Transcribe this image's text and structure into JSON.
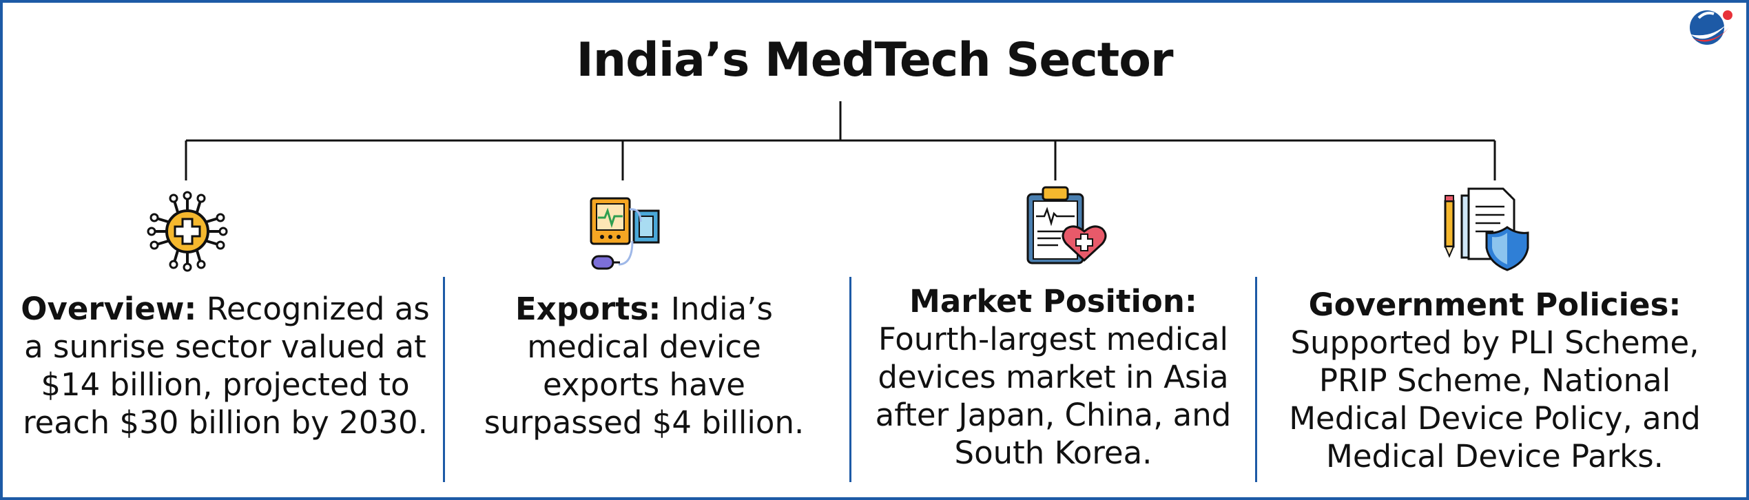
{
  "title": "India’s MedTech Sector",
  "colors": {
    "border": "#1d5aa6",
    "text": "#111111",
    "logo_blue": "#1d5aa6",
    "logo_red": "#e8323a"
  },
  "columns": [
    {
      "heading": "Overview:",
      "body": " Recognized as a sunrise sector valued at $14 billion, projected to reach $30 billion by 2030.",
      "icon": "circuit-medical-cross-icon"
    },
    {
      "heading": "Exports:",
      "body": " India’s medical device exports have surpassed $4 billion.",
      "icon": "medical-device-monitor-icon"
    },
    {
      "heading": "Market Position:",
      "body": "Fourth-largest medical devices market in Asia after Japan, China, and South Korea.",
      "icon": "clipboard-heart-icon"
    },
    {
      "heading": "Government Policies:",
      "body": "Supported by PLI Scheme, PRIP Scheme, National Medical Device Policy, and Medical Device Parks.",
      "icon": "policy-document-shield-icon"
    }
  ]
}
